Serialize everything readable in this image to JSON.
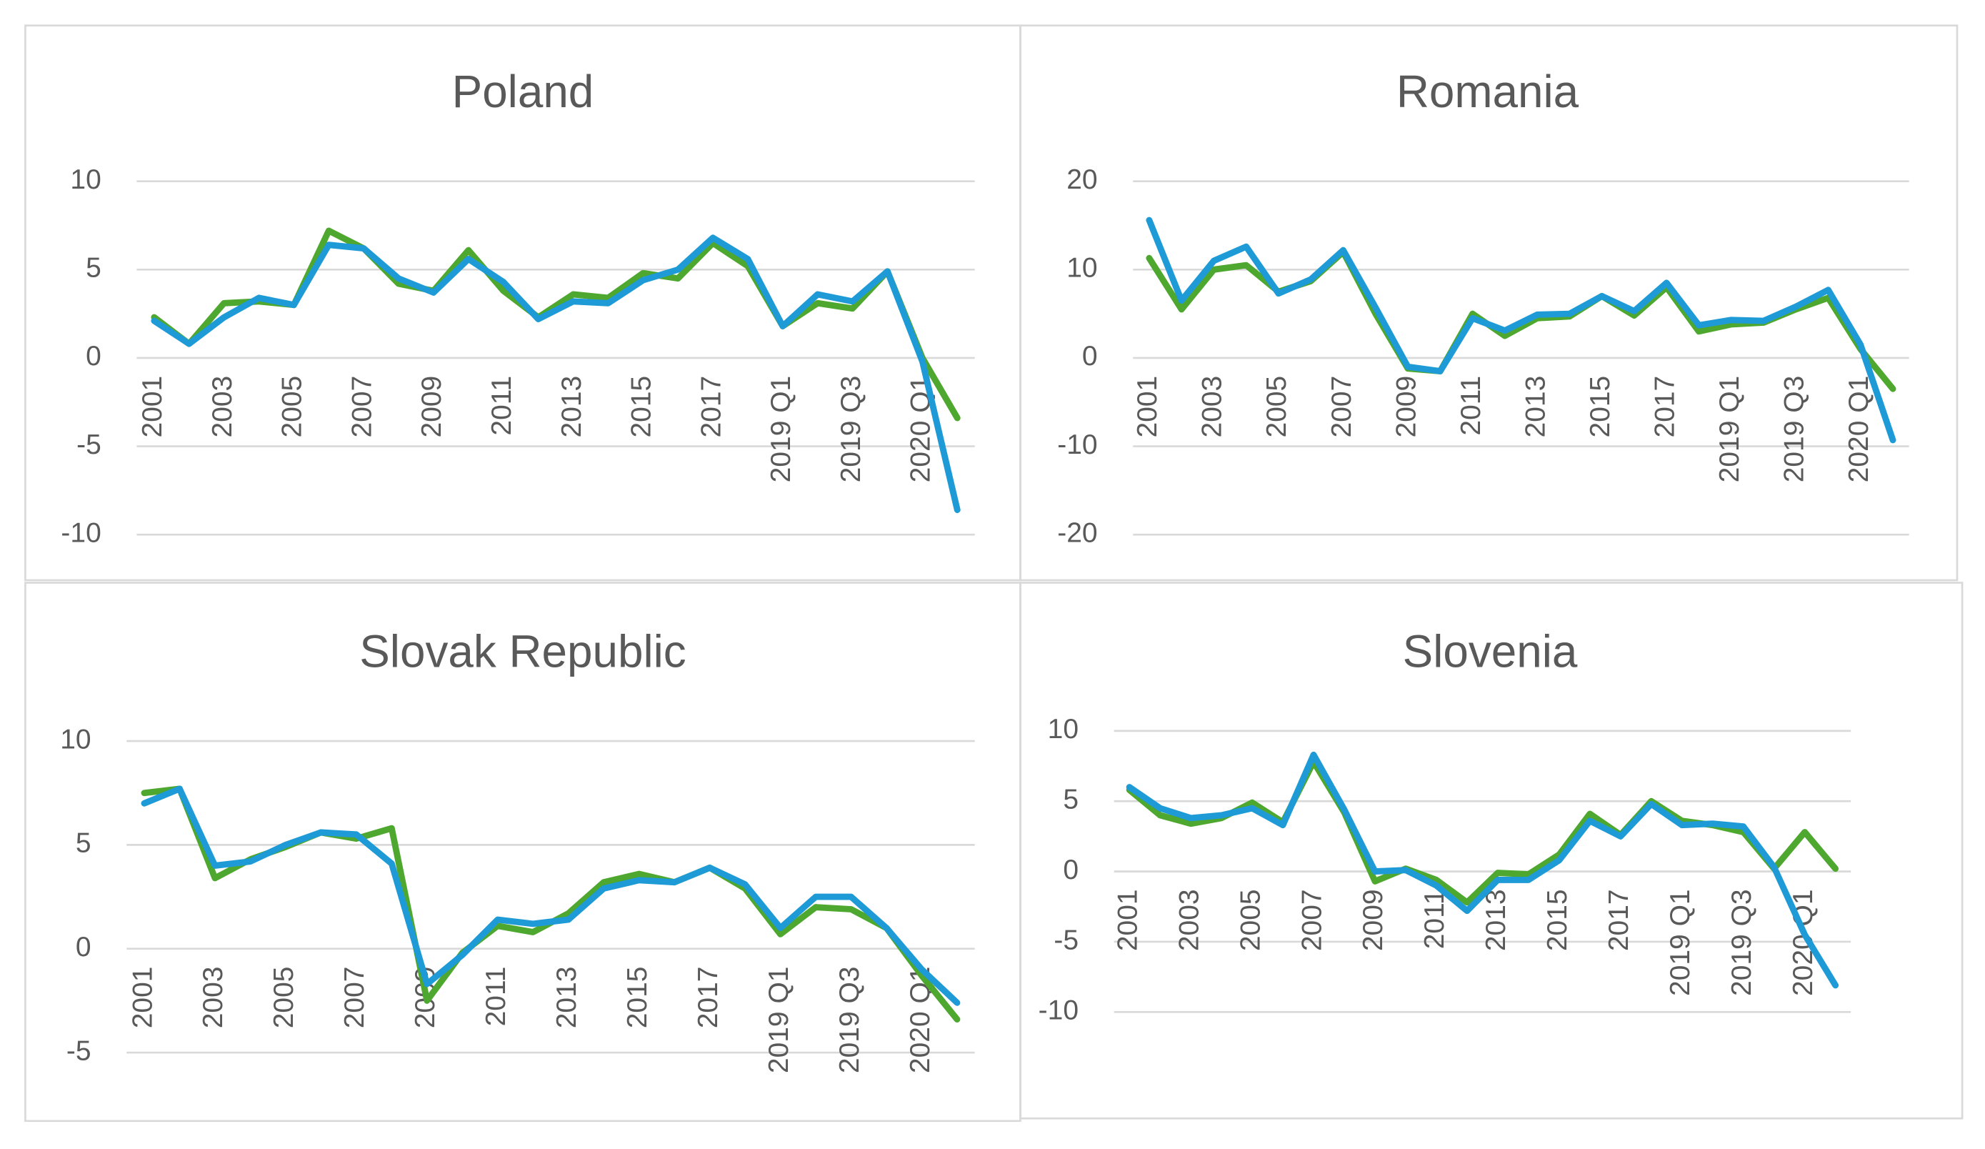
{
  "chart_data": [
    {
      "type": "line",
      "title": "Poland",
      "categories": [
        "2001",
        null,
        "2003",
        null,
        "2005",
        null,
        "2007",
        null,
        "2009",
        null,
        "2011",
        null,
        "2013",
        null,
        "2015",
        null,
        "2017",
        null,
        "2019 Q1",
        null,
        "2019 Q3",
        null,
        "2020 Q1",
        null
      ],
      "series": [
        {
          "color": "#4ea72e",
          "values": [
            2.3,
            0.8,
            3.1,
            3.2,
            3.0,
            7.2,
            6.2,
            4.2,
            3.8,
            6.1,
            3.8,
            2.3,
            3.6,
            3.4,
            4.8,
            4.5,
            6.5,
            5.2,
            1.8,
            3.1,
            2.8,
            4.9,
            0.0,
            -3.4
          ]
        },
        {
          "color": "#1e9ad6",
          "values": [
            2.1,
            0.8,
            2.3,
            3.4,
            3.0,
            6.4,
            6.2,
            4.5,
            3.7,
            5.6,
            4.3,
            2.2,
            3.2,
            3.1,
            4.4,
            5.0,
            6.8,
            5.6,
            1.8,
            3.6,
            3.2,
            4.9,
            -0.2,
            -8.6
          ]
        }
      ],
      "ylim": [
        -10,
        10
      ],
      "yticks": [
        -10,
        -5,
        0,
        5,
        10
      ],
      "grid": true
    },
    {
      "type": "line",
      "title": "Romania",
      "categories": [
        "2001",
        null,
        "2003",
        null,
        "2005",
        null,
        "2007",
        null,
        "2009",
        null,
        "2011",
        null,
        "2013",
        null,
        "2015",
        null,
        "2017",
        null,
        "2019 Q1",
        null,
        "2019 Q3",
        null,
        "2020 Q1",
        null
      ],
      "series": [
        {
          "color": "#4ea72e",
          "values": [
            11.3,
            5.5,
            10.0,
            10.5,
            7.5,
            8.7,
            12.0,
            5.0,
            -1.2,
            -1.5,
            5.0,
            2.5,
            4.5,
            4.7,
            7.0,
            4.8,
            8.0,
            3.0,
            3.8,
            4.0,
            5.5,
            6.8,
            1.0,
            -3.5
          ]
        },
        {
          "color": "#1e9ad6",
          "values": [
            15.6,
            6.5,
            11.0,
            12.6,
            7.3,
            8.9,
            12.2,
            5.7,
            -1.0,
            -1.5,
            4.5,
            3.1,
            4.9,
            5.0,
            7.0,
            5.3,
            8.5,
            3.7,
            4.3,
            4.2,
            5.8,
            7.7,
            1.5,
            -9.3
          ]
        }
      ],
      "ylim": [
        -20,
        20
      ],
      "yticks": [
        -20,
        -10,
        0,
        10,
        20
      ],
      "grid": true
    },
    {
      "type": "line",
      "title": "Slovak Republic",
      "categories": [
        "2001",
        null,
        "2003",
        null,
        "2005",
        null,
        "2007",
        null,
        "2009",
        null,
        "2011",
        null,
        "2013",
        null,
        "2015",
        null,
        "2017",
        null,
        "2019 Q1",
        null,
        "2019 Q3",
        null,
        "2020 Q1",
        null
      ],
      "series": [
        {
          "color": "#4ea72e",
          "values": [
            7.5,
            7.7,
            3.4,
            4.3,
            4.9,
            5.6,
            5.3,
            5.8,
            -2.5,
            -0.2,
            1.1,
            0.8,
            1.7,
            3.2,
            3.6,
            3.2,
            3.9,
            2.9,
            0.7,
            2.0,
            1.9,
            1.0,
            -1.3,
            -3.4
          ]
        },
        {
          "color": "#1e9ad6",
          "values": [
            7.0,
            7.7,
            4.0,
            4.2,
            5.0,
            5.6,
            5.5,
            4.1,
            -1.7,
            -0.3,
            1.4,
            1.2,
            1.4,
            2.9,
            3.3,
            3.2,
            3.9,
            3.1,
            1.0,
            2.5,
            2.5,
            1.0,
            -1.0,
            -2.6
          ]
        }
      ],
      "ylim": [
        -5,
        10
      ],
      "yticks": [
        -5,
        0,
        5,
        10
      ],
      "grid": true
    },
    {
      "type": "line",
      "title": "Slovenia",
      "categories": [
        "2001",
        null,
        "2003",
        null,
        "2005",
        null,
        "2007",
        null,
        "2009",
        null,
        "2011",
        null,
        "2013",
        null,
        "2015",
        null,
        "2017",
        null,
        "2019 Q1",
        null,
        "2019 Q3",
        null,
        "2020 Q1",
        null
      ],
      "series": [
        {
          "color": "#4ea72e",
          "values": [
            5.8,
            4.0,
            3.4,
            3.8,
            4.9,
            3.5,
            7.8,
            4.2,
            -0.7,
            0.2,
            -0.6,
            -2.2,
            -0.1,
            -0.2,
            1.2,
            4.1,
            2.6,
            5.0,
            3.6,
            3.3,
            2.8,
            0.2,
            2.8,
            0.2
          ]
        },
        {
          "color": "#1e9ad6",
          "values": [
            6.0,
            4.5,
            3.8,
            4.0,
            4.5,
            3.3,
            8.3,
            4.4,
            0.0,
            0.1,
            -1.0,
            -2.8,
            -0.6,
            -0.6,
            0.8,
            3.6,
            2.5,
            4.8,
            3.3,
            3.4,
            3.2,
            0.3,
            -4.5,
            -8.1
          ]
        }
      ],
      "ylim": [
        -10,
        10
      ],
      "yticks": [
        -10,
        -5,
        0,
        5,
        10
      ],
      "grid": true
    }
  ]
}
